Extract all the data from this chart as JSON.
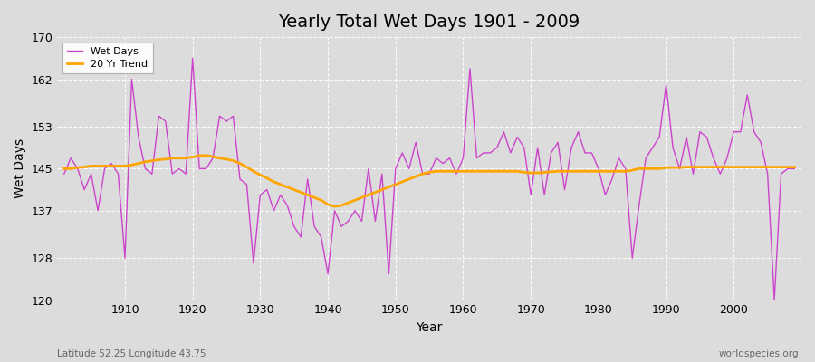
{
  "title": "Yearly Total Wet Days 1901 - 2009",
  "xlabel": "Year",
  "ylabel": "Wet Days",
  "subtitle": "Latitude 52.25 Longitude 43.75",
  "watermark": "worldspecies.org",
  "ylim": [
    120,
    170
  ],
  "yticks": [
    120,
    128,
    137,
    145,
    153,
    162,
    170
  ],
  "line_color": "#cc44cc",
  "trend_color": "#ffa500",
  "fig_bg": "#dcdcdc",
  "plot_bg": "#dcdcdc",
  "years": [
    1901,
    1902,
    1903,
    1904,
    1905,
    1906,
    1907,
    1908,
    1909,
    1910,
    1911,
    1912,
    1913,
    1914,
    1915,
    1916,
    1917,
    1918,
    1919,
    1920,
    1921,
    1922,
    1923,
    1924,
    1925,
    1926,
    1927,
    1928,
    1929,
    1930,
    1931,
    1932,
    1933,
    1934,
    1935,
    1936,
    1937,
    1938,
    1939,
    1940,
    1941,
    1942,
    1943,
    1944,
    1945,
    1946,
    1947,
    1948,
    1949,
    1950,
    1951,
    1952,
    1953,
    1954,
    1955,
    1956,
    1957,
    1958,
    1959,
    1960,
    1961,
    1962,
    1963,
    1964,
    1965,
    1966,
    1967,
    1968,
    1969,
    1970,
    1971,
    1972,
    1973,
    1974,
    1975,
    1976,
    1977,
    1978,
    1979,
    1980,
    1981,
    1982,
    1983,
    1984,
    1985,
    1986,
    1987,
    1988,
    1989,
    1990,
    1991,
    1992,
    1993,
    1994,
    1995,
    1996,
    1997,
    1998,
    1999,
    2000,
    2001,
    2002,
    2003,
    2004,
    2005,
    2006,
    2007,
    2008,
    2009
  ],
  "wet_days": [
    144,
    147,
    145,
    141,
    144,
    137,
    145,
    146,
    144,
    128,
    162,
    151,
    145,
    144,
    155,
    154,
    144,
    145,
    144,
    166,
    145,
    145,
    147,
    155,
    154,
    155,
    143,
    142,
    127,
    140,
    141,
    137,
    140,
    138,
    134,
    132,
    143,
    134,
    132,
    125,
    137,
    134,
    135,
    137,
    135,
    145,
    135,
    144,
    125,
    145,
    148,
    145,
    150,
    144,
    144,
    147,
    146,
    147,
    144,
    147,
    164,
    147,
    148,
    148,
    149,
    152,
    148,
    151,
    149,
    140,
    149,
    140,
    148,
    150,
    141,
    149,
    152,
    148,
    148,
    145,
    140,
    143,
    147,
    145,
    128,
    138,
    147,
    149,
    151,
    161,
    149,
    145,
    151,
    144,
    152,
    151,
    147,
    144,
    147,
    152,
    152,
    159,
    152,
    150,
    144,
    120,
    144,
    145,
    145
  ],
  "trend": [
    145.0,
    145.0,
    145.2,
    145.3,
    145.5,
    145.5,
    145.5,
    145.5,
    145.5,
    145.5,
    145.7,
    146.0,
    146.3,
    146.5,
    146.7,
    146.8,
    147.0,
    147.0,
    147.0,
    147.2,
    147.5,
    147.5,
    147.3,
    147.0,
    146.8,
    146.5,
    146.0,
    145.3,
    144.5,
    143.8,
    143.2,
    142.5,
    142.0,
    141.5,
    141.0,
    140.5,
    140.0,
    139.5,
    139.0,
    138.2,
    137.8,
    138.0,
    138.5,
    139.0,
    139.5,
    140.0,
    140.5,
    141.0,
    141.5,
    142.0,
    142.5,
    143.0,
    143.5,
    144.0,
    144.3,
    144.5,
    144.5,
    144.5,
    144.5,
    144.5,
    144.5,
    144.5,
    144.5,
    144.5,
    144.5,
    144.5,
    144.5,
    144.5,
    144.3,
    144.2,
    144.2,
    144.3,
    144.4,
    144.5,
    144.5,
    144.5,
    144.5,
    144.5,
    144.5,
    144.5,
    144.5,
    144.5,
    144.5,
    144.5,
    144.7,
    145.0,
    145.0,
    145.0,
    145.0,
    145.2,
    145.2,
    145.2,
    145.3,
    145.3,
    145.3,
    145.3,
    145.3,
    145.3,
    145.3,
    145.3,
    145.3,
    145.3,
    145.3,
    145.3,
    145.3,
    145.3,
    145.3,
    145.3,
    145.3
  ]
}
